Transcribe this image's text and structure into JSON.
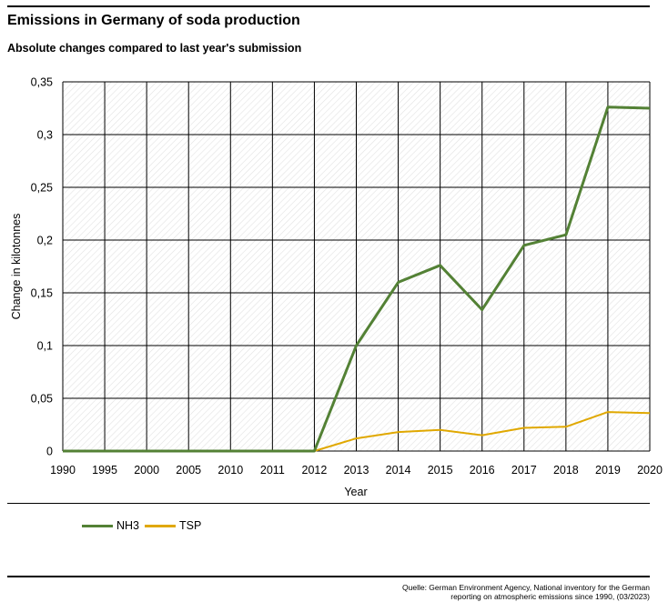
{
  "title": "Emissions in Germany of soda production",
  "subtitle": "Absolute changes compared to last year's submission",
  "source": {
    "line1": "Quelle: German Environment Agency, National inventory for the German",
    "line2": "reporting on atmospheric emissions since 1990, (03/2023)"
  },
  "chart_data": {
    "type": "line",
    "categories": [
      "1990",
      "1995",
      "2000",
      "2005",
      "2010",
      "2011",
      "2012",
      "2013",
      "2014",
      "2015",
      "2016",
      "2017",
      "2018",
      "2019",
      "2020"
    ],
    "series": [
      {
        "name": "NH3",
        "color": "#538135",
        "values": [
          0,
          0,
          0,
          0,
          0,
          0,
          0,
          0.1,
          0.16,
          0.176,
          0.134,
          0.195,
          0.205,
          0.326,
          0.325
        ]
      },
      {
        "name": "TSP",
        "color": "#E0A800",
        "values": [
          0,
          0,
          0,
          0,
          0,
          0,
          0,
          0.012,
          0.018,
          0.02,
          0.015,
          0.022,
          0.023,
          0.037,
          0.036
        ]
      }
    ],
    "xlabel": "Year",
    "ylabel": "Change in kilotonnes",
    "ylim": [
      0,
      0.35
    ],
    "yticks": [
      0,
      0.05,
      0.1,
      0.15,
      0.2,
      0.25,
      0.3,
      0.35
    ],
    "ytick_labels": [
      "0",
      "0,05",
      "0,1",
      "0,15",
      "0,2",
      "0,25",
      "0,3",
      "0,35"
    ],
    "grid": true,
    "legend_position": "bottom-left"
  }
}
